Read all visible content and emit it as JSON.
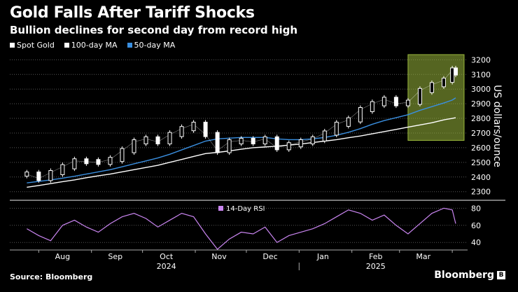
{
  "chart_data": {
    "type": "line",
    "title": "Gold Falls After Tariff Shocks",
    "subtitle": "Bullion declines for second day from record high",
    "legend": [
      {
        "name": "Spot Gold",
        "color": "#ffffff"
      },
      {
        "name": "100-day MA",
        "color": "#ffffff"
      },
      {
        "name": "50-day MA",
        "color": "#3a8fe0"
      }
    ],
    "ylabel": "US dollars/ounce",
    "y_ticks": [
      2300,
      2400,
      2500,
      2600,
      2700,
      2800,
      2900,
      3000,
      3100,
      3200
    ],
    "ylim": [
      2270,
      3235
    ],
    "x_ticks": [
      "Aug",
      "Sep",
      "Oct",
      "Nov",
      "Dec",
      "Jan",
      "Feb",
      "Mar"
    ],
    "years": [
      "2024",
      "2025"
    ],
    "x": [
      "2024-07-25",
      "2024-08-01",
      "2024-08-08",
      "2024-08-15",
      "2024-08-22",
      "2024-08-29",
      "2024-09-05",
      "2024-09-12",
      "2024-09-19",
      "2024-09-26",
      "2024-10-03",
      "2024-10-10",
      "2024-10-17",
      "2024-10-24",
      "2024-10-31",
      "2024-11-07",
      "2024-11-14",
      "2024-11-21",
      "2024-11-28",
      "2024-12-05",
      "2024-12-12",
      "2024-12-19",
      "2024-12-26",
      "2025-01-02",
      "2025-01-09",
      "2025-01-16",
      "2025-01-23",
      "2025-01-30",
      "2025-02-06",
      "2025-02-13",
      "2025-02-20",
      "2025-02-27",
      "2025-03-06",
      "2025-03-13",
      "2025-03-20",
      "2025-03-27",
      "2025-04-01",
      "2025-04-03"
    ],
    "series": [
      {
        "name": "Spot Gold",
        "values": [
          2420,
          2390,
          2430,
          2470,
          2510,
          2505,
          2500,
          2520,
          2580,
          2640,
          2660,
          2640,
          2690,
          2730,
          2760,
          2690,
          2580,
          2640,
          2650,
          2640,
          2660,
          2600,
          2620,
          2640,
          2660,
          2700,
          2760,
          2790,
          2860,
          2900,
          2930,
          2900,
          2910,
          2990,
          3030,
          3060,
          3130,
          3110
        ]
      },
      {
        "name": "100-day MA",
        "values": [
          2330,
          2342,
          2355,
          2368,
          2380,
          2395,
          2408,
          2420,
          2435,
          2450,
          2465,
          2480,
          2500,
          2520,
          2540,
          2560,
          2568,
          2578,
          2590,
          2600,
          2605,
          2610,
          2618,
          2625,
          2635,
          2645,
          2655,
          2668,
          2680,
          2695,
          2710,
          2725,
          2740,
          2755,
          2770,
          2790,
          2800,
          2805
        ]
      },
      {
        "name": "50-day MA",
        "values": [
          2360,
          2370,
          2380,
          2392,
          2405,
          2420,
          2435,
          2450,
          2470,
          2490,
          2510,
          2530,
          2555,
          2585,
          2615,
          2645,
          2660,
          2665,
          2670,
          2670,
          2670,
          2660,
          2655,
          2655,
          2660,
          2670,
          2685,
          2705,
          2730,
          2760,
          2785,
          2805,
          2825,
          2855,
          2880,
          2905,
          2925,
          2940
        ]
      }
    ],
    "highlight": {
      "from": "2025-03-06",
      "to": "2025-04-03",
      "color": "#9ab83c"
    },
    "rsi": {
      "label": "14-Day RSI",
      "y_ticks": [
        40,
        60,
        80
      ],
      "ylim": [
        32,
        86
      ],
      "values": [
        56,
        48,
        42,
        60,
        66,
        58,
        52,
        62,
        70,
        74,
        68,
        58,
        66,
        74,
        70,
        50,
        32,
        44,
        52,
        50,
        58,
        40,
        48,
        52,
        56,
        62,
        70,
        78,
        74,
        66,
        72,
        60,
        50,
        62,
        74,
        80,
        78,
        62
      ]
    }
  },
  "source_label": "Source: Bloomberg",
  "brand": {
    "name": "Bloomberg",
    "mark": "B"
  }
}
